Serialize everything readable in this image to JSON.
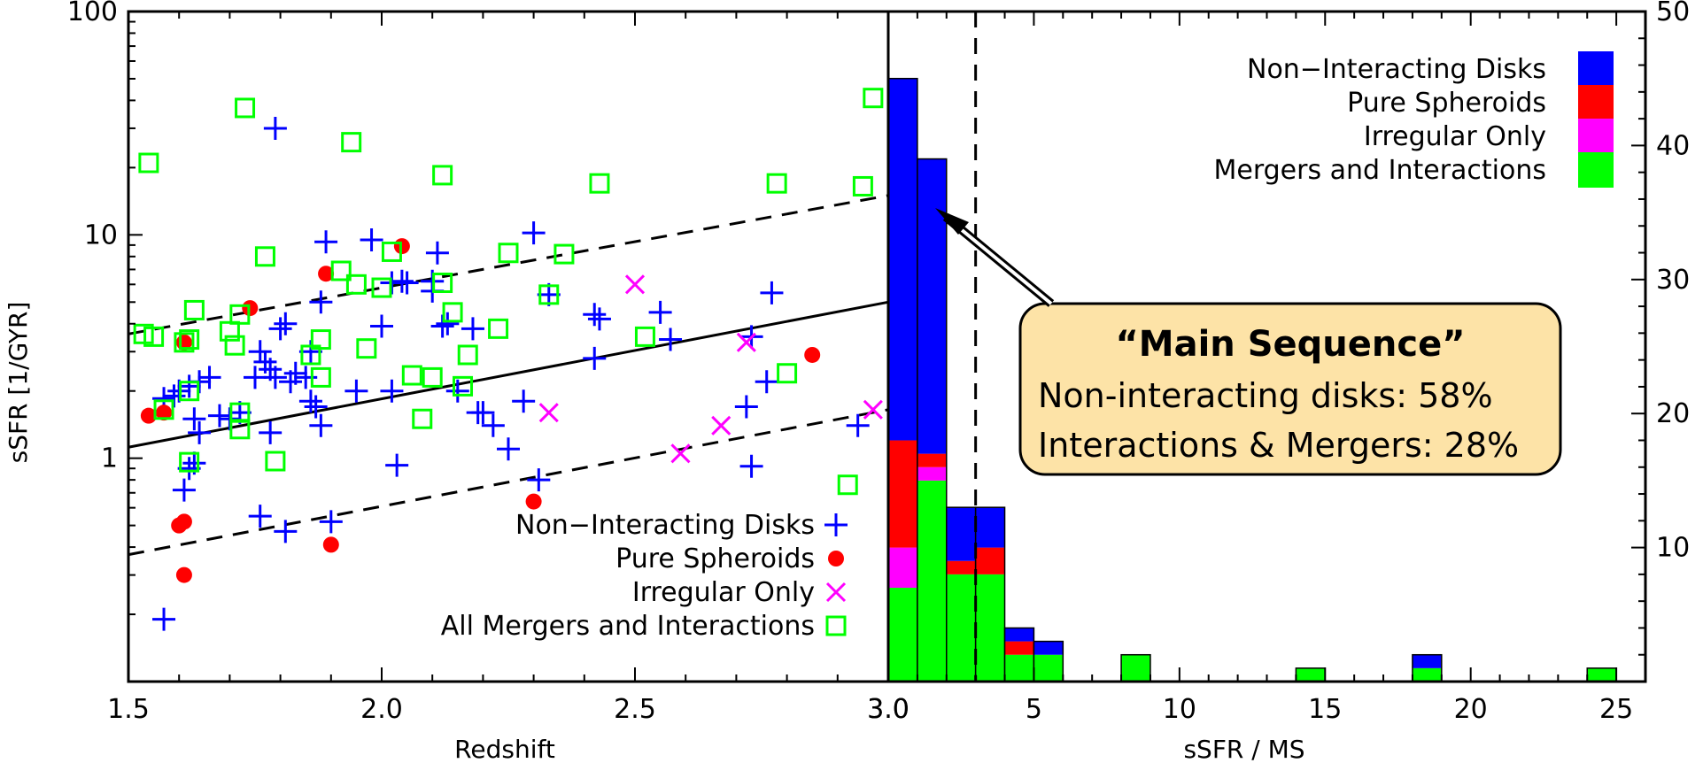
{
  "colors": {
    "disks": "#0000ff",
    "spheroids": "#ff0000",
    "irregular": "#ff00ff",
    "mergers": "#00ff00",
    "callout_fill": "#fde3a7"
  },
  "chart_data": [
    {
      "type": "scatter",
      "xlabel": "Redshift",
      "ylabel": "sSFR [1/GYR]",
      "xlim": [
        1.5,
        3.0
      ],
      "ylim": [
        0.1,
        100
      ],
      "yscale": "log",
      "x_ticks": [
        "1.5",
        "2.0",
        "2.5",
        "3.0"
      ],
      "y_ticks": [
        "1",
        "10",
        "100"
      ],
      "y_tick_values": [
        1,
        10,
        100
      ],
      "legend_position": "bottom-right",
      "series": [
        {
          "name": "Non-Interacting Disks",
          "marker": "plus",
          "color": "#0000ff",
          "points": [
            [
              1.57,
              0.19
            ],
            [
              1.59,
              1.9
            ],
            [
              1.57,
              1.85
            ],
            [
              1.6,
              2.0
            ],
            [
              1.62,
              2.1
            ],
            [
              1.63,
              1.5
            ],
            [
              1.64,
              1.3
            ],
            [
              1.61,
              0.72
            ],
            [
              1.62,
              0.9
            ],
            [
              1.63,
              0.95
            ],
            [
              1.64,
              2.2
            ],
            [
              1.66,
              2.3
            ],
            [
              1.68,
              1.55
            ],
            [
              1.7,
              1.5
            ],
            [
              1.72,
              1.6
            ],
            [
              1.75,
              2.3
            ],
            [
              1.76,
              3.0
            ],
            [
              1.77,
              2.7
            ],
            [
              1.78,
              2.5
            ],
            [
              1.79,
              2.3
            ],
            [
              1.8,
              3.8
            ],
            [
              1.81,
              4.0
            ],
            [
              1.79,
              30.0
            ],
            [
              1.82,
              2.2
            ],
            [
              1.83,
              2.4
            ],
            [
              1.85,
              2.3
            ],
            [
              1.86,
              1.8
            ],
            [
              1.87,
              1.7
            ],
            [
              1.88,
              1.4
            ],
            [
              1.86,
              3.0
            ],
            [
              1.88,
              5.0
            ],
            [
              1.89,
              9.3
            ],
            [
              1.9,
              0.52
            ],
            [
              1.81,
              0.47
            ],
            [
              1.76,
              0.55
            ],
            [
              1.78,
              1.3
            ],
            [
              1.95,
              2.0
            ],
            [
              1.98,
              9.5
            ],
            [
              2.0,
              3.9
            ],
            [
              2.02,
              2.0
            ],
            [
              2.02,
              6.1
            ],
            [
              2.04,
              6.2
            ],
            [
              2.05,
              6.1
            ],
            [
              2.1,
              6.2
            ],
            [
              2.1,
              5.6
            ],
            [
              2.11,
              8.3
            ],
            [
              2.12,
              3.9
            ],
            [
              2.13,
              4.0
            ],
            [
              2.15,
              2.0
            ],
            [
              2.18,
              3.8
            ],
            [
              2.19,
              1.6
            ],
            [
              2.2,
              1.6
            ],
            [
              2.22,
              1.4
            ],
            [
              2.25,
              1.1
            ],
            [
              2.28,
              1.8
            ],
            [
              2.3,
              10.2
            ],
            [
              2.31,
              0.8
            ],
            [
              2.33,
              5.4
            ],
            [
              2.42,
              4.4
            ],
            [
              2.43,
              4.2
            ],
            [
              2.42,
              2.8
            ],
            [
              2.55,
              4.5
            ],
            [
              2.57,
              3.4
            ],
            [
              2.72,
              1.7
            ],
            [
              2.73,
              0.92
            ],
            [
              2.73,
              3.5
            ],
            [
              2.76,
              2.2
            ],
            [
              2.77,
              5.5
            ],
            [
              2.03,
              0.93
            ],
            [
              2.94,
              1.4
            ]
          ]
        },
        {
          "name": "Pure Spheroids",
          "marker": "circle",
          "color": "#ff0000",
          "points": [
            [
              1.54,
              1.55
            ],
            [
              1.57,
              1.6
            ],
            [
              1.6,
              0.5
            ],
            [
              1.61,
              0.52
            ],
            [
              1.61,
              0.3
            ],
            [
              1.61,
              3.3
            ],
            [
              1.74,
              4.7
            ],
            [
              1.9,
              0.41
            ],
            [
              1.89,
              6.7
            ],
            [
              2.04,
              8.9
            ],
            [
              2.3,
              0.64
            ],
            [
              2.85,
              2.9
            ]
          ]
        },
        {
          "name": "Irregular Only",
          "marker": "x",
          "color": "#ff00ff",
          "points": [
            [
              2.33,
              1.6
            ],
            [
              2.5,
              6.0
            ],
            [
              2.59,
              1.05
            ],
            [
              2.67,
              1.4
            ],
            [
              2.72,
              3.3
            ],
            [
              2.97,
              1.65
            ]
          ]
        },
        {
          "name": "All Mergers and Interactions",
          "marker": "square",
          "color": "#00ff00",
          "points": [
            [
              1.54,
              21.0
            ],
            [
              1.53,
              3.6
            ],
            [
              1.55,
              3.5
            ],
            [
              1.57,
              1.65
            ],
            [
              1.61,
              3.3
            ],
            [
              1.62,
              3.4
            ],
            [
              1.62,
              2.0
            ],
            [
              1.63,
              4.6
            ],
            [
              1.62,
              0.96
            ],
            [
              1.7,
              3.7
            ],
            [
              1.71,
              3.2
            ],
            [
              1.72,
              1.6
            ],
            [
              1.72,
              1.35
            ],
            [
              1.72,
              4.4
            ],
            [
              1.73,
              37.0
            ],
            [
              1.77,
              8.0
            ],
            [
              1.79,
              0.97
            ],
            [
              1.86,
              2.9
            ],
            [
              1.88,
              2.3
            ],
            [
              1.88,
              3.4
            ],
            [
              1.92,
              6.9
            ],
            [
              1.94,
              26.0
            ],
            [
              1.95,
              6.0
            ],
            [
              1.97,
              3.1
            ],
            [
              2.0,
              5.8
            ],
            [
              2.02,
              8.4
            ],
            [
              2.06,
              2.35
            ],
            [
              2.08,
              1.5
            ],
            [
              2.1,
              2.3
            ],
            [
              2.12,
              6.1
            ],
            [
              2.12,
              18.5
            ],
            [
              2.14,
              4.5
            ],
            [
              2.16,
              2.1
            ],
            [
              2.17,
              2.9
            ],
            [
              2.23,
              3.8
            ],
            [
              2.25,
              8.3
            ],
            [
              2.33,
              5.4
            ],
            [
              2.36,
              8.2
            ],
            [
              2.43,
              17.0
            ],
            [
              2.52,
              3.5
            ],
            [
              2.78,
              17.0
            ],
            [
              2.8,
              2.4
            ],
            [
              2.92,
              0.76
            ],
            [
              2.95,
              16.5
            ],
            [
              2.97,
              41.0
            ]
          ]
        }
      ],
      "lines": [
        {
          "style": "solid",
          "points": [
            [
              1.5,
              1.12
            ],
            [
              3.0,
              5.0
            ]
          ]
        },
        {
          "style": "dashed",
          "points": [
            [
              1.5,
              3.6
            ],
            [
              3.0,
              15.0
            ]
          ]
        },
        {
          "style": "dashed",
          "points": [
            [
              1.5,
              0.37
            ],
            [
              3.0,
              1.65
            ]
          ]
        }
      ]
    },
    {
      "type": "bar",
      "stacked": true,
      "xlabel": "sSFR / MS",
      "xlim": [
        0,
        26
      ],
      "ylim": [
        0,
        50
      ],
      "x_ticks": [
        "5",
        "10",
        "15",
        "20",
        "25"
      ],
      "x_tick_values": [
        5,
        10,
        15,
        20,
        25
      ],
      "y_ticks": [
        "10",
        "20",
        "30",
        "40",
        "50"
      ],
      "y_tick_values": [
        10,
        20,
        30,
        40,
        50
      ],
      "bin_width": 1,
      "vline": 3.0,
      "legend_position": "top-right",
      "bin_starts": [
        0,
        1,
        2,
        3,
        4,
        5,
        8,
        14,
        18,
        24
      ],
      "series": [
        {
          "name": "Mergers and Interactions",
          "color": "#00ff00",
          "values": [
            7,
            15,
            8,
            8,
            2,
            2,
            2,
            1,
            1,
            1
          ]
        },
        {
          "name": "Irregular Only",
          "color": "#ff00ff",
          "values": [
            3,
            1,
            0,
            0,
            0,
            0,
            0,
            0,
            0,
            0
          ]
        },
        {
          "name": "Pure Spheroids",
          "color": "#ff0000",
          "values": [
            8,
            1,
            1,
            2,
            1,
            0,
            0,
            0,
            0,
            0
          ]
        },
        {
          "name": "Non-Interacting Disks",
          "color": "#0000ff",
          "values": [
            27,
            22,
            4,
            3,
            1,
            1,
            0,
            0,
            1,
            0
          ]
        }
      ]
    }
  ],
  "scatter_legend": [
    "Non−Interacting Disks",
    "Pure Spheroids",
    "Irregular Only",
    "All Mergers and Interactions"
  ],
  "hist_legend": [
    "Non−Interacting Disks",
    "Pure Spheroids",
    "Irregular Only",
    "Mergers and Interactions"
  ],
  "callout": {
    "title": "“Main Sequence”",
    "line1": "Non-interacting disks:  58%",
    "line2": "Interactions & Mergers: 28%"
  }
}
